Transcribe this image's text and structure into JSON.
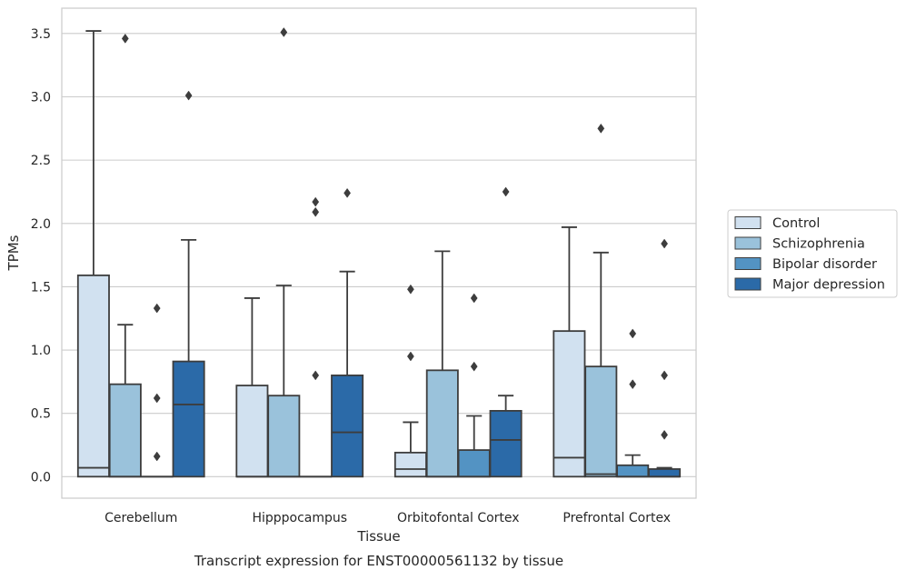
{
  "caption": "Transcript expression for ENST00000561132 by tissue",
  "chart_data": {
    "type": "box",
    "title": "",
    "xlabel": "Tissue",
    "ylabel": "TPMs",
    "ylim": [
      -0.17,
      3.7
    ],
    "yticks": [
      0.0,
      0.5,
      1.0,
      1.5,
      2.0,
      2.5,
      3.0,
      3.5
    ],
    "ytick_labels": [
      "0.0",
      "0.5",
      "1.0",
      "1.5",
      "2.0",
      "2.5",
      "3.0",
      "3.5"
    ],
    "grid": "horizontal",
    "legend_position": "right",
    "categories": [
      "Cerebellum",
      "Hipppocampus",
      "Orbitofontal Cortex",
      "Prefrontal Cortex"
    ],
    "series": [
      {
        "name": "Control",
        "color": "#d1e1f0",
        "boxes": [
          {
            "q1": 0.0,
            "median": 0.07,
            "q3": 1.59,
            "whisker_low": 0.0,
            "whisker_high": 3.52,
            "outliers": []
          },
          {
            "q1": 0.0,
            "median": 0.0,
            "q3": 0.72,
            "whisker_low": 0.0,
            "whisker_high": 1.41,
            "outliers": []
          },
          {
            "q1": 0.0,
            "median": 0.06,
            "q3": 0.19,
            "whisker_low": 0.0,
            "whisker_high": 0.43,
            "outliers": [
              0.95,
              1.48
            ]
          },
          {
            "q1": 0.0,
            "median": 0.15,
            "q3": 1.15,
            "whisker_low": 0.0,
            "whisker_high": 1.97,
            "outliers": []
          }
        ]
      },
      {
        "name": "Schizophrenia",
        "color": "#9ac2db",
        "boxes": [
          {
            "q1": 0.0,
            "median": 0.0,
            "q3": 0.73,
            "whisker_low": 0.0,
            "whisker_high": 1.2,
            "outliers": [
              3.46
            ]
          },
          {
            "q1": 0.0,
            "median": 0.0,
            "q3": 0.64,
            "whisker_low": 0.0,
            "whisker_high": 1.51,
            "outliers": [
              3.51
            ]
          },
          {
            "q1": 0.0,
            "median": 0.0,
            "q3": 0.84,
            "whisker_low": 0.0,
            "whisker_high": 1.78,
            "outliers": []
          },
          {
            "q1": 0.0,
            "median": 0.02,
            "q3": 0.87,
            "whisker_low": 0.0,
            "whisker_high": 1.77,
            "outliers": [
              2.75
            ]
          }
        ]
      },
      {
        "name": "Bipolar disorder",
        "color": "#5393c3",
        "boxes": [
          {
            "q1": 0.0,
            "median": 0.0,
            "q3": 0.0,
            "whisker_low": 0.0,
            "whisker_high": 0.0,
            "outliers": [
              0.16,
              0.62,
              1.33
            ]
          },
          {
            "q1": 0.0,
            "median": 0.0,
            "q3": 0.0,
            "whisker_low": 0.0,
            "whisker_high": 0.0,
            "outliers": [
              0.8,
              2.09,
              2.17
            ]
          },
          {
            "q1": 0.0,
            "median": 0.0,
            "q3": 0.21,
            "whisker_low": 0.0,
            "whisker_high": 0.48,
            "outliers": [
              0.87,
              1.41
            ]
          },
          {
            "q1": 0.0,
            "median": 0.0,
            "q3": 0.09,
            "whisker_low": 0.0,
            "whisker_high": 0.17,
            "outliers": [
              0.73,
              1.13
            ]
          }
        ]
      },
      {
        "name": "Major depression",
        "color": "#2b6aa8",
        "boxes": [
          {
            "q1": 0.0,
            "median": 0.57,
            "q3": 0.91,
            "whisker_low": 0.0,
            "whisker_high": 1.87,
            "outliers": [
              3.01
            ]
          },
          {
            "q1": 0.0,
            "median": 0.35,
            "q3": 0.8,
            "whisker_low": 0.0,
            "whisker_high": 1.62,
            "outliers": [
              2.24
            ]
          },
          {
            "q1": 0.0,
            "median": 0.29,
            "q3": 0.52,
            "whisker_low": 0.0,
            "whisker_high": 0.64,
            "outliers": [
              2.25
            ]
          },
          {
            "q1": 0.0,
            "median": 0.0,
            "q3": 0.06,
            "whisker_low": 0.0,
            "whisker_high": 0.07,
            "outliers": [
              0.33,
              0.8,
              1.84
            ]
          }
        ]
      }
    ]
  }
}
